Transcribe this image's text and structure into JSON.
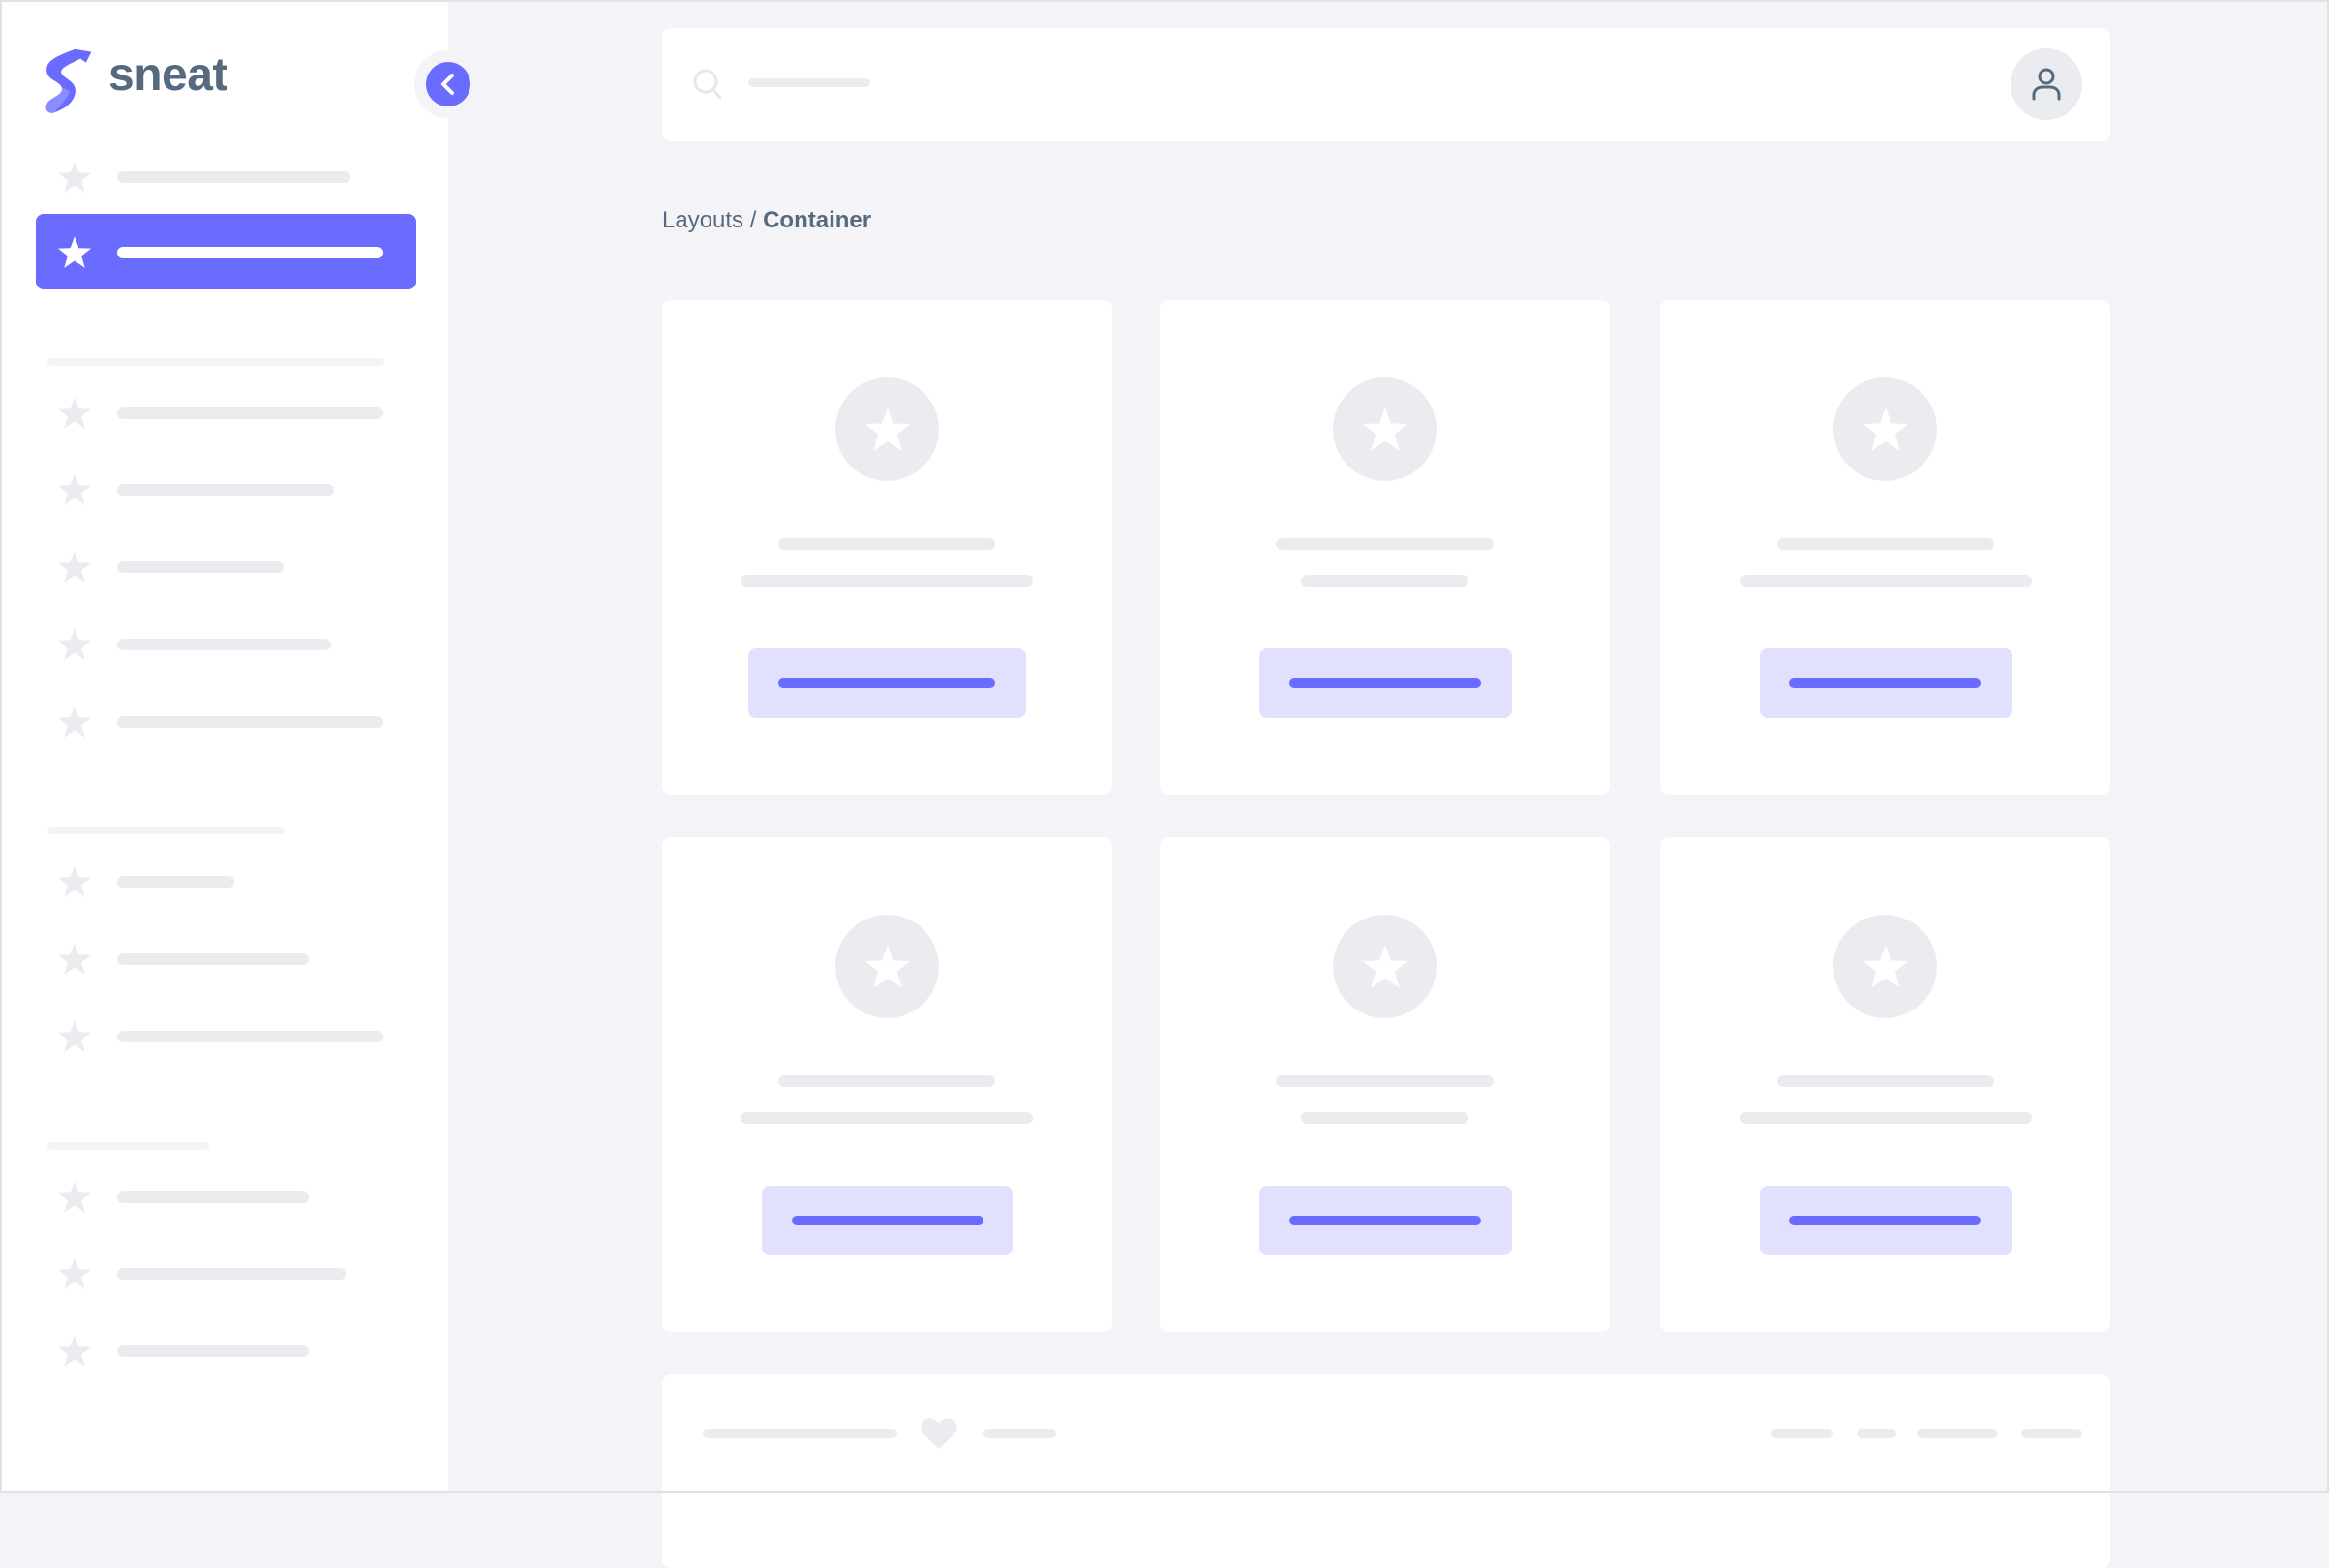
{
  "brand": {
    "name": "sneat",
    "accent": "#696cff"
  },
  "breadcrumb": {
    "parent": "Layouts",
    "separator": "/",
    "current": "Container"
  },
  "header": {
    "search_icon": "search-icon",
    "avatar_icon": "user-icon"
  },
  "sidebar": {
    "collapse_icon": "chevron-left-icon",
    "active_index": 1,
    "item_icon": "star-icon"
  },
  "footer": {
    "icon": "heart-icon"
  }
}
